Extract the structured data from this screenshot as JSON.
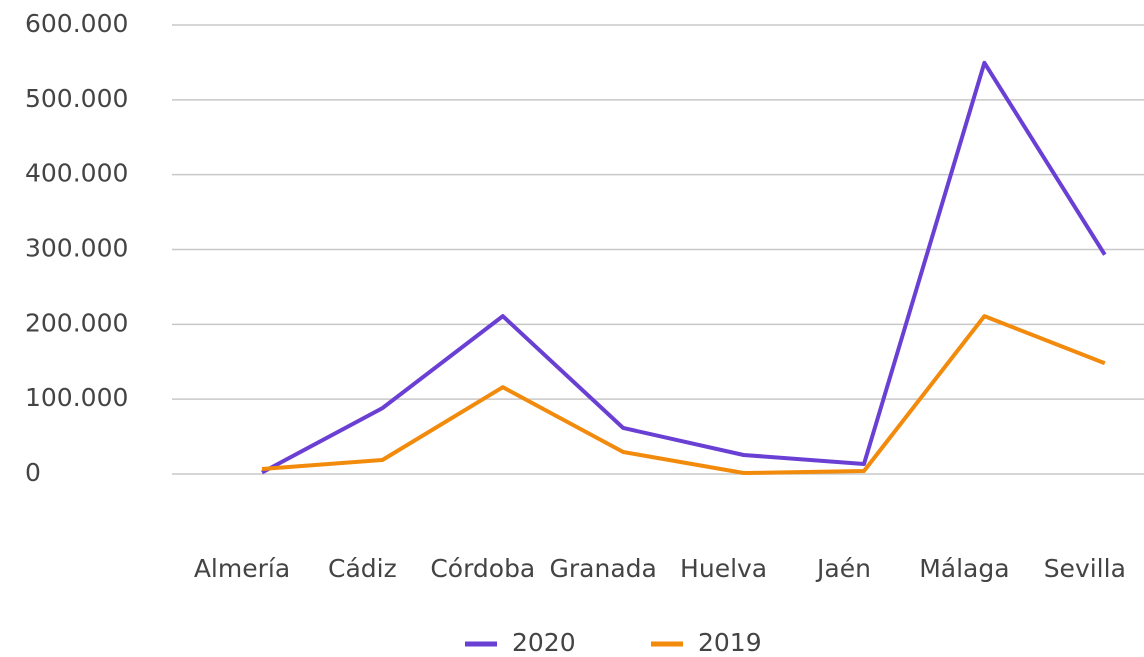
{
  "chart_data": {
    "type": "line",
    "categories": [
      "Almería",
      "Cádiz",
      "Córdoba",
      "Granada",
      "Huelva",
      "Jaén",
      "Málaga",
      "Sevilla"
    ],
    "series": [
      {
        "name": "2020",
        "color": "#6a3fd4",
        "values": [
          2000,
          88000,
          211000,
          61500,
          25400,
          13400,
          549500,
          293000
        ]
      },
      {
        "name": "2019",
        "color": "#f28a0c",
        "values": [
          6700,
          18700,
          116000,
          29400,
          1300,
          4000,
          211000,
          148000
        ]
      }
    ],
    "ylim": [
      0,
      600000
    ],
    "yticks": [
      0,
      {
        "value": 100000,
        "label": "100.000"
      },
      {
        "value": 200000,
        "label": "200.000"
      },
      {
        "value": 300000,
        "label": "300.000"
      },
      {
        "value": 400000,
        "label": "400.000"
      },
      {
        "value": 500000,
        "label": "500.000"
      },
      {
        "value": 600000,
        "label": "600.000"
      }
    ],
    "grid": true,
    "legend": "bottom"
  }
}
